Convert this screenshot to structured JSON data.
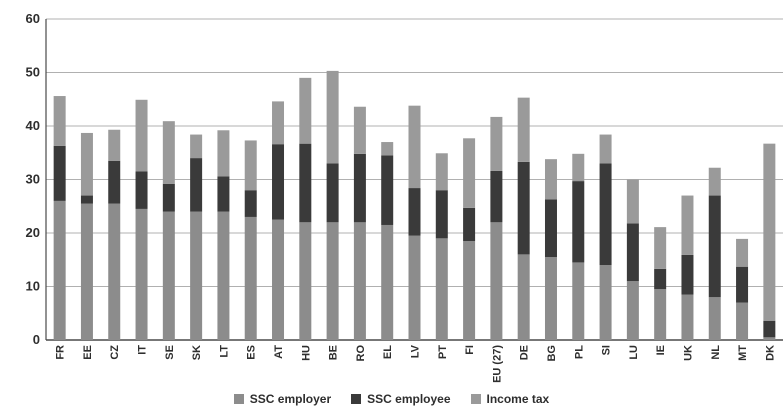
{
  "chart_data": {
    "type": "bar",
    "stacked": true,
    "categories": [
      "FR",
      "EE",
      "CZ",
      "IT",
      "SE",
      "SK",
      "LT",
      "ES",
      "AT",
      "HU",
      "BE",
      "RO",
      "EL",
      "LV",
      "PT",
      "FI",
      "EU (27)",
      "DE",
      "BG",
      "PL",
      "SI",
      "LU",
      "IE",
      "UK",
      "NL",
      "MT",
      "DK"
    ],
    "series": [
      {
        "name": "SSC employer",
        "color": "#8c8c8c",
        "values": [
          26.0,
          25.5,
          25.5,
          24.5,
          24.0,
          24.0,
          24.0,
          23.0,
          22.5,
          22.0,
          22.0,
          22.0,
          21.5,
          19.5,
          19.0,
          18.5,
          22.0,
          16.0,
          15.5,
          14.5,
          14.0,
          11.0,
          9.5,
          8.5,
          8.0,
          7.0,
          0.5
        ]
      },
      {
        "name": "SSC employee",
        "color": "#3a3a3a",
        "values": [
          10.3,
          1.5,
          8.0,
          7.0,
          5.2,
          10.0,
          6.6,
          5.0,
          14.1,
          14.7,
          11.0,
          12.8,
          13.0,
          8.9,
          9.0,
          6.2,
          9.6,
          17.3,
          10.8,
          15.2,
          19.0,
          10.8,
          3.8,
          7.4,
          19.0,
          6.7,
          3.1
        ]
      },
      {
        "name": "Income tax",
        "color": "#9a9a9a",
        "values": [
          9.3,
          11.7,
          5.8,
          13.4,
          11.7,
          4.4,
          8.6,
          9.3,
          8.0,
          12.3,
          17.3,
          8.8,
          2.5,
          15.4,
          6.9,
          13.0,
          10.1,
          12.0,
          7.5,
          5.1,
          5.4,
          8.2,
          7.8,
          11.1,
          5.2,
          5.2,
          33.1
        ]
      }
    ],
    "ylim": [
      0,
      60
    ],
    "yticks": [
      0,
      10,
      20,
      30,
      40,
      50,
      60
    ],
    "title": "",
    "xlabel": "",
    "ylabel": "",
    "grid": true,
    "legend_position": "bottom"
  }
}
